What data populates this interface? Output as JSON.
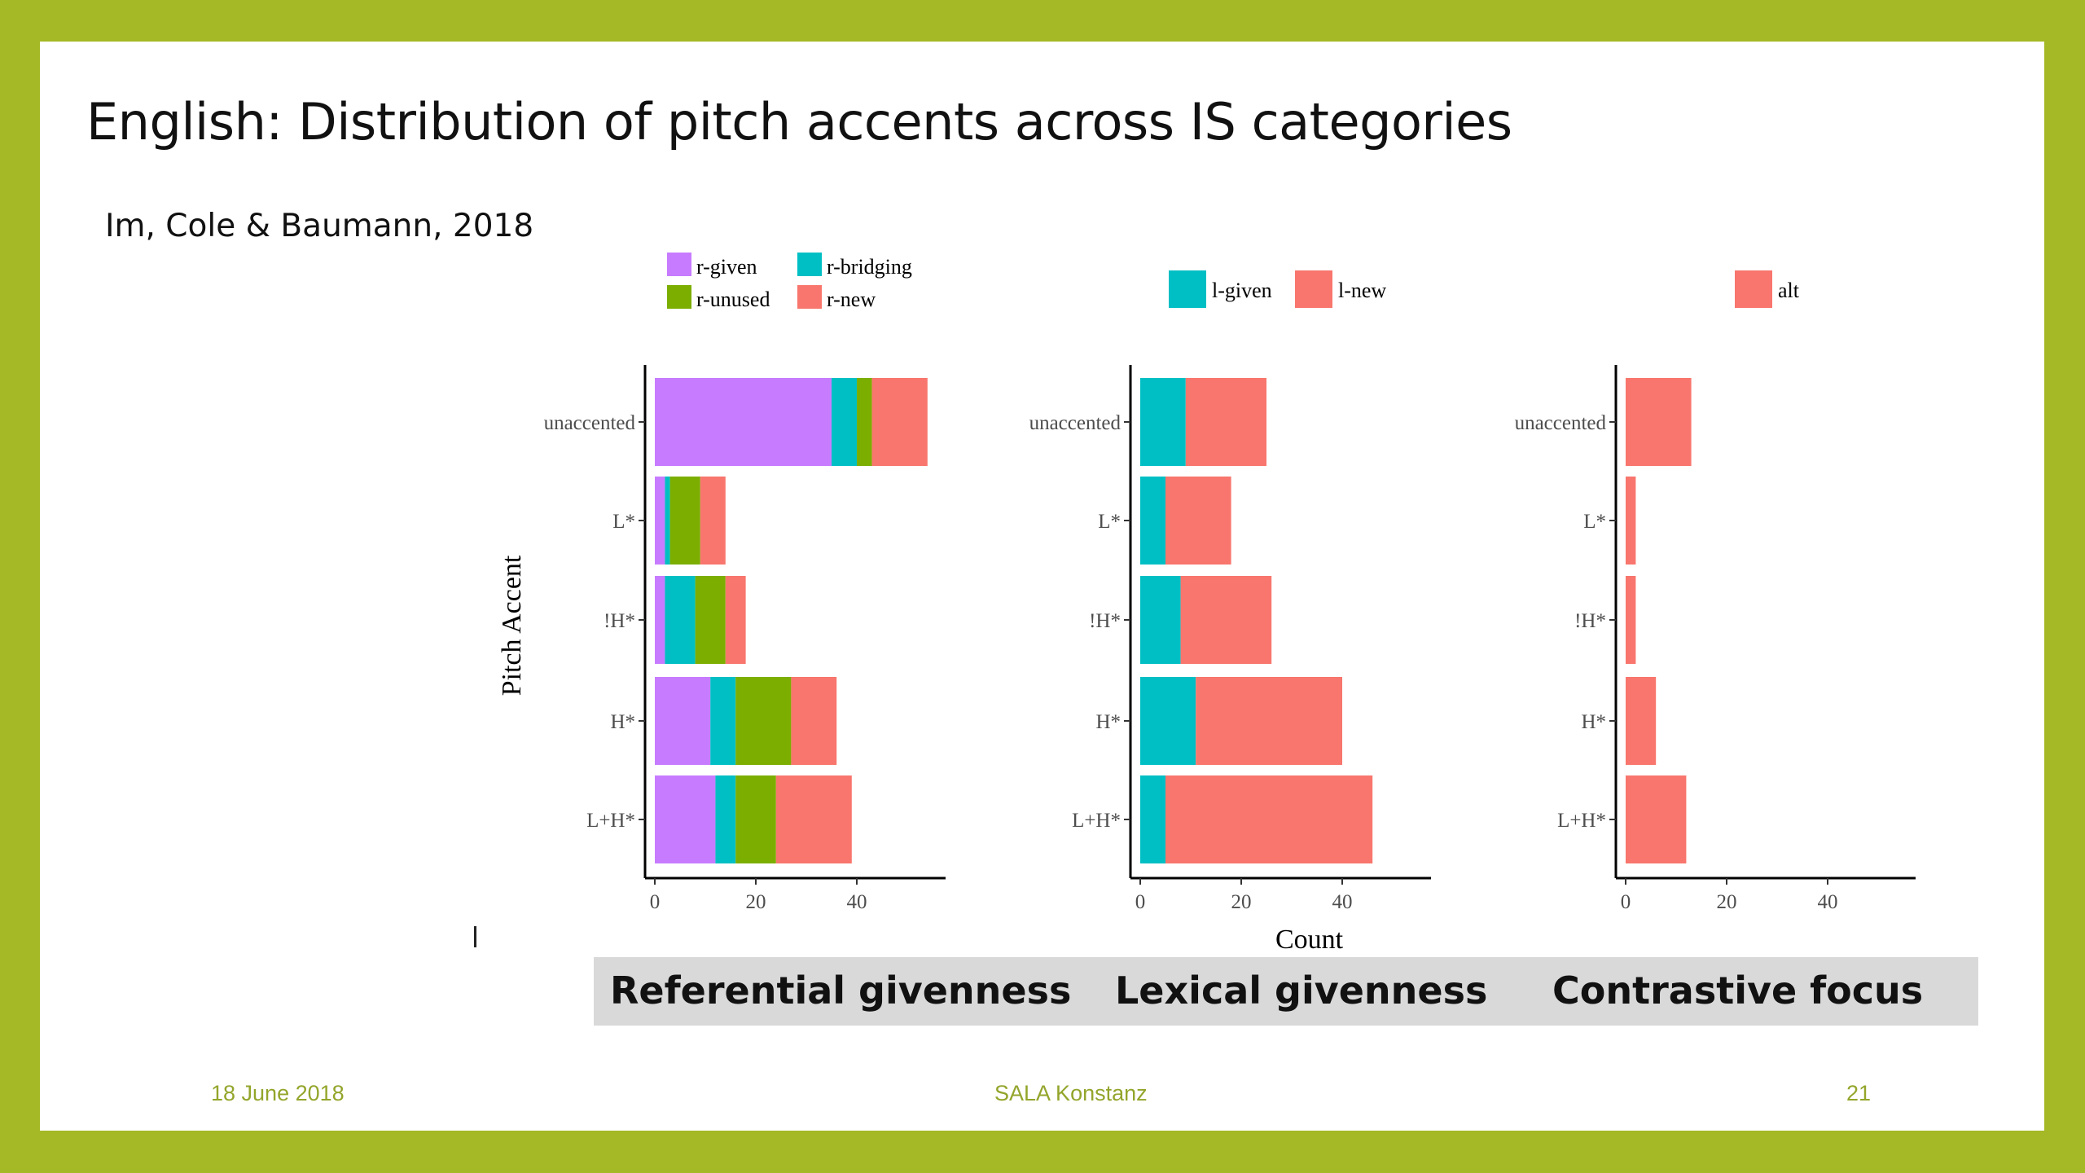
{
  "slide": {
    "title": "English: Distribution of pitch accents across IS categories",
    "subtitle": "Im, Cole & Baumann, 2018",
    "captions": [
      "Referential givenness",
      "Lexical givenness",
      "Contrastive focus"
    ],
    "footer": {
      "date": "18 June  2018",
      "event": "SALA Konstanz",
      "page": "21"
    },
    "colors": {
      "frame": "#a5b825",
      "caption_bg": "#d9d9d9",
      "footer_text": "#94a52b"
    }
  },
  "chart_data": [
    {
      "type": "bar",
      "orientation": "horizontal",
      "stacked": true,
      "ylabel": "Pitch Accent",
      "xlabel": "",
      "categories": [
        "unaccented",
        "L*",
        "!H*",
        "H*",
        "L+H*"
      ],
      "xlim": [
        0,
        58
      ],
      "xticks": [
        0,
        20,
        40
      ],
      "legend_position": "top",
      "series": [
        {
          "name": "r-given",
          "color": "#c77cff",
          "values": [
            35,
            2,
            2,
            11,
            12
          ]
        },
        {
          "name": "r-bridging",
          "color": "#00bfc4",
          "values": [
            5,
            1,
            6,
            5,
            4
          ]
        },
        {
          "name": "r-unused",
          "color": "#7cae00",
          "values": [
            3,
            6,
            6,
            11,
            8
          ]
        },
        {
          "name": "r-new",
          "color": "#f8766d",
          "values": [
            11,
            5,
            4,
            9,
            15
          ]
        }
      ]
    },
    {
      "type": "bar",
      "orientation": "horizontal",
      "stacked": true,
      "ylabel": "",
      "xlabel": "Count",
      "categories": [
        "unaccented",
        "L*",
        "!H*",
        "H*",
        "L+H*"
      ],
      "xlim": [
        0,
        58
      ],
      "xticks": [
        0,
        20,
        40
      ],
      "legend_position": "top",
      "series": [
        {
          "name": "l-given",
          "color": "#00bfc4",
          "values": [
            9,
            5,
            8,
            11,
            5
          ]
        },
        {
          "name": "l-new",
          "color": "#f8766d",
          "values": [
            16,
            13,
            18,
            29,
            41
          ]
        }
      ]
    },
    {
      "type": "bar",
      "orientation": "horizontal",
      "stacked": true,
      "ylabel": "",
      "xlabel": "",
      "categories": [
        "unaccented",
        "L*",
        "!H*",
        "H*",
        "L+H*"
      ],
      "xlim": [
        0,
        58
      ],
      "xticks": [
        0,
        20,
        40
      ],
      "legend_position": "top",
      "series": [
        {
          "name": "alt",
          "color": "#f8766d",
          "values": [
            13,
            2,
            2,
            6,
            12
          ]
        }
      ]
    }
  ]
}
